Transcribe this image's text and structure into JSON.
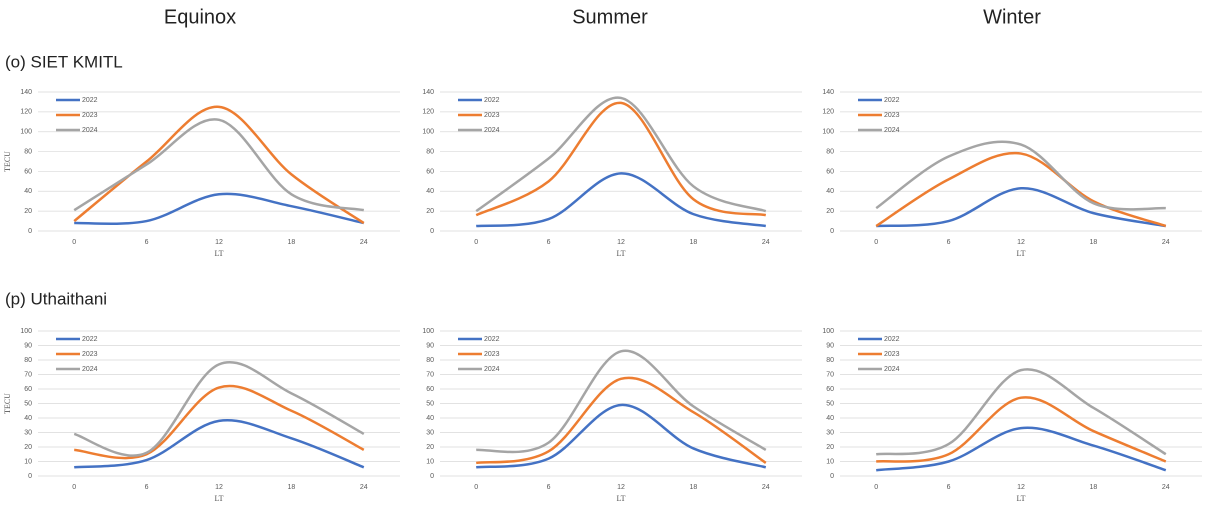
{
  "columns": [
    "Equinox",
    "Summer",
    "Winter"
  ],
  "rows": [
    "(o) SIET KMITL",
    "(p) Uthaithani"
  ],
  "chart_data": [
    {
      "type": "line",
      "ylabel": "TECU",
      "xlabel": "LT",
      "x": [
        0,
        6,
        12,
        18,
        24
      ],
      "xlim": [
        -3,
        27
      ],
      "xticks": [
        0,
        6,
        12,
        18,
        24
      ],
      "ylim": [
        0,
        140
      ],
      "yticks": [
        0,
        20,
        40,
        60,
        80,
        100,
        120,
        140
      ],
      "grid": true,
      "legend": "top-left",
      "series": [
        {
          "name": "2022",
          "color": "#4472c4",
          "values": [
            8,
            10,
            37,
            25,
            8
          ]
        },
        {
          "name": "2023",
          "color": "#ed7d31",
          "values": [
            10,
            70,
            125,
            57,
            8
          ]
        },
        {
          "name": "2024",
          "color": "#a5a5a5",
          "values": [
            21,
            67,
            112,
            37,
            21
          ]
        }
      ]
    },
    {
      "type": "line",
      "xlabel": "LT",
      "x": [
        0,
        6,
        12,
        18,
        24
      ],
      "xlim": [
        -3,
        27
      ],
      "xticks": [
        0,
        6,
        12,
        18,
        24
      ],
      "ylim": [
        0,
        140
      ],
      "yticks": [
        0,
        20,
        40,
        60,
        80,
        100,
        120,
        140
      ],
      "grid": true,
      "legend": "top-left",
      "series": [
        {
          "name": "2022",
          "color": "#4472c4",
          "values": [
            5,
            12,
            58,
            17,
            5
          ]
        },
        {
          "name": "2023",
          "color": "#ed7d31",
          "values": [
            16,
            50,
            129,
            32,
            16
          ]
        },
        {
          "name": "2024",
          "color": "#a5a5a5",
          "values": [
            20,
            73,
            134,
            45,
            20
          ]
        }
      ]
    },
    {
      "type": "line",
      "xlabel": "LT",
      "x": [
        0,
        6,
        12,
        18,
        24
      ],
      "xlim": [
        -3,
        27
      ],
      "xticks": [
        0,
        6,
        12,
        18,
        24
      ],
      "ylim": [
        0,
        140
      ],
      "yticks": [
        0,
        20,
        40,
        60,
        80,
        100,
        120,
        140
      ],
      "grid": true,
      "legend": "top-left",
      "series": [
        {
          "name": "2022",
          "color": "#4472c4",
          "values": [
            5,
            10,
            43,
            18,
            5
          ]
        },
        {
          "name": "2023",
          "color": "#ed7d31",
          "values": [
            5,
            52,
            78,
            30,
            5
          ]
        },
        {
          "name": "2024",
          "color": "#a5a5a5",
          "values": [
            23,
            75,
            87,
            28,
            23
          ]
        }
      ]
    },
    {
      "type": "line",
      "ylabel": "TECU",
      "xlabel": "LT",
      "x": [
        0,
        6,
        12,
        18,
        24
      ],
      "xlim": [
        -3,
        27
      ],
      "xticks": [
        0,
        6,
        12,
        18,
        24
      ],
      "ylim": [
        0,
        100
      ],
      "yticks": [
        0,
        10,
        20,
        30,
        40,
        50,
        60,
        70,
        80,
        90,
        100
      ],
      "grid": true,
      "legend": "top-left",
      "series": [
        {
          "name": "2022",
          "color": "#4472c4",
          "values": [
            6,
            11,
            38,
            26,
            6
          ]
        },
        {
          "name": "2023",
          "color": "#ed7d31",
          "values": [
            18,
            15,
            61,
            45,
            18
          ]
        },
        {
          "name": "2024",
          "color": "#a5a5a5",
          "values": [
            29,
            16,
            77,
            57,
            29
          ]
        }
      ]
    },
    {
      "type": "line",
      "xlabel": "LT",
      "x": [
        0,
        6,
        12,
        18,
        24
      ],
      "xlim": [
        -3,
        27
      ],
      "xticks": [
        0,
        6,
        12,
        18,
        24
      ],
      "ylim": [
        0,
        100
      ],
      "yticks": [
        0,
        10,
        20,
        30,
        40,
        50,
        60,
        70,
        80,
        90,
        100
      ],
      "grid": true,
      "legend": "top-left",
      "series": [
        {
          "name": "2022",
          "color": "#4472c4",
          "values": [
            6,
            12,
            49,
            19,
            6
          ]
        },
        {
          "name": "2023",
          "color": "#ed7d31",
          "values": [
            9,
            17,
            67,
            44,
            9
          ]
        },
        {
          "name": "2024",
          "color": "#a5a5a5",
          "values": [
            18,
            23,
            86,
            48,
            18
          ]
        }
      ]
    },
    {
      "type": "line",
      "xlabel": "LT",
      "x": [
        0,
        6,
        12,
        18,
        24
      ],
      "xlim": [
        -3,
        27
      ],
      "xticks": [
        0,
        6,
        12,
        18,
        24
      ],
      "ylim": [
        0,
        100
      ],
      "yticks": [
        0,
        10,
        20,
        30,
        40,
        50,
        60,
        70,
        80,
        90,
        100
      ],
      "grid": true,
      "legend": "top-left",
      "series": [
        {
          "name": "2022",
          "color": "#4472c4",
          "values": [
            4,
            10,
            33,
            21,
            4
          ]
        },
        {
          "name": "2023",
          "color": "#ed7d31",
          "values": [
            10,
            15,
            54,
            31,
            10
          ]
        },
        {
          "name": "2024",
          "color": "#a5a5a5",
          "values": [
            15,
            22,
            73,
            47,
            15
          ]
        }
      ]
    }
  ]
}
